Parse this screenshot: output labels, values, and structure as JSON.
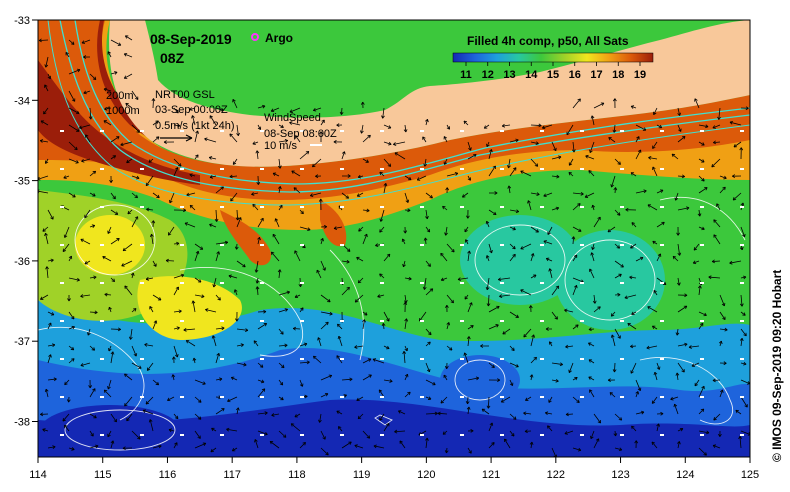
{
  "header": {
    "date": "08-Sep-2019",
    "time": "08Z",
    "argo_label": "Argo"
  },
  "colorbar": {
    "title": "Filled 4h comp, p50, All Sats",
    "ticks": [
      "11",
      "12",
      "13",
      "14",
      "15",
      "16",
      "17",
      "18",
      "19"
    ],
    "colors": [
      "#1428b4",
      "#1e64dc",
      "#1ea0dc",
      "#28c8a0",
      "#3cc83c",
      "#a0d228",
      "#f0e61e",
      "#f0a014",
      "#dc5a0a",
      "#9b1e0a"
    ]
  },
  "currents": {
    "depth_200": "200m",
    "depth_1000": "1000m",
    "source": "NRT00 GSL",
    "date": "03-Sep 00:00Z",
    "scale": "0.5m/s (1kt 24h)"
  },
  "wind": {
    "title": "WindSpeed",
    "date": "08-Sep 08:00Z",
    "scale": "10 m/s"
  },
  "axes": {
    "x_ticks": [
      "114",
      "115",
      "116",
      "117",
      "118",
      "119",
      "120",
      "121",
      "122",
      "123",
      "124",
      "125"
    ],
    "y_ticks": [
      "-33",
      "-34",
      "-35",
      "-36",
      "-37",
      "-38"
    ]
  },
  "credit": "© IMOS 09-Sep-2019 09:20 Hobart",
  "colors": {
    "land": "#f8c89a",
    "contour": "#40e0d0",
    "argo": "#ff33ff"
  }
}
